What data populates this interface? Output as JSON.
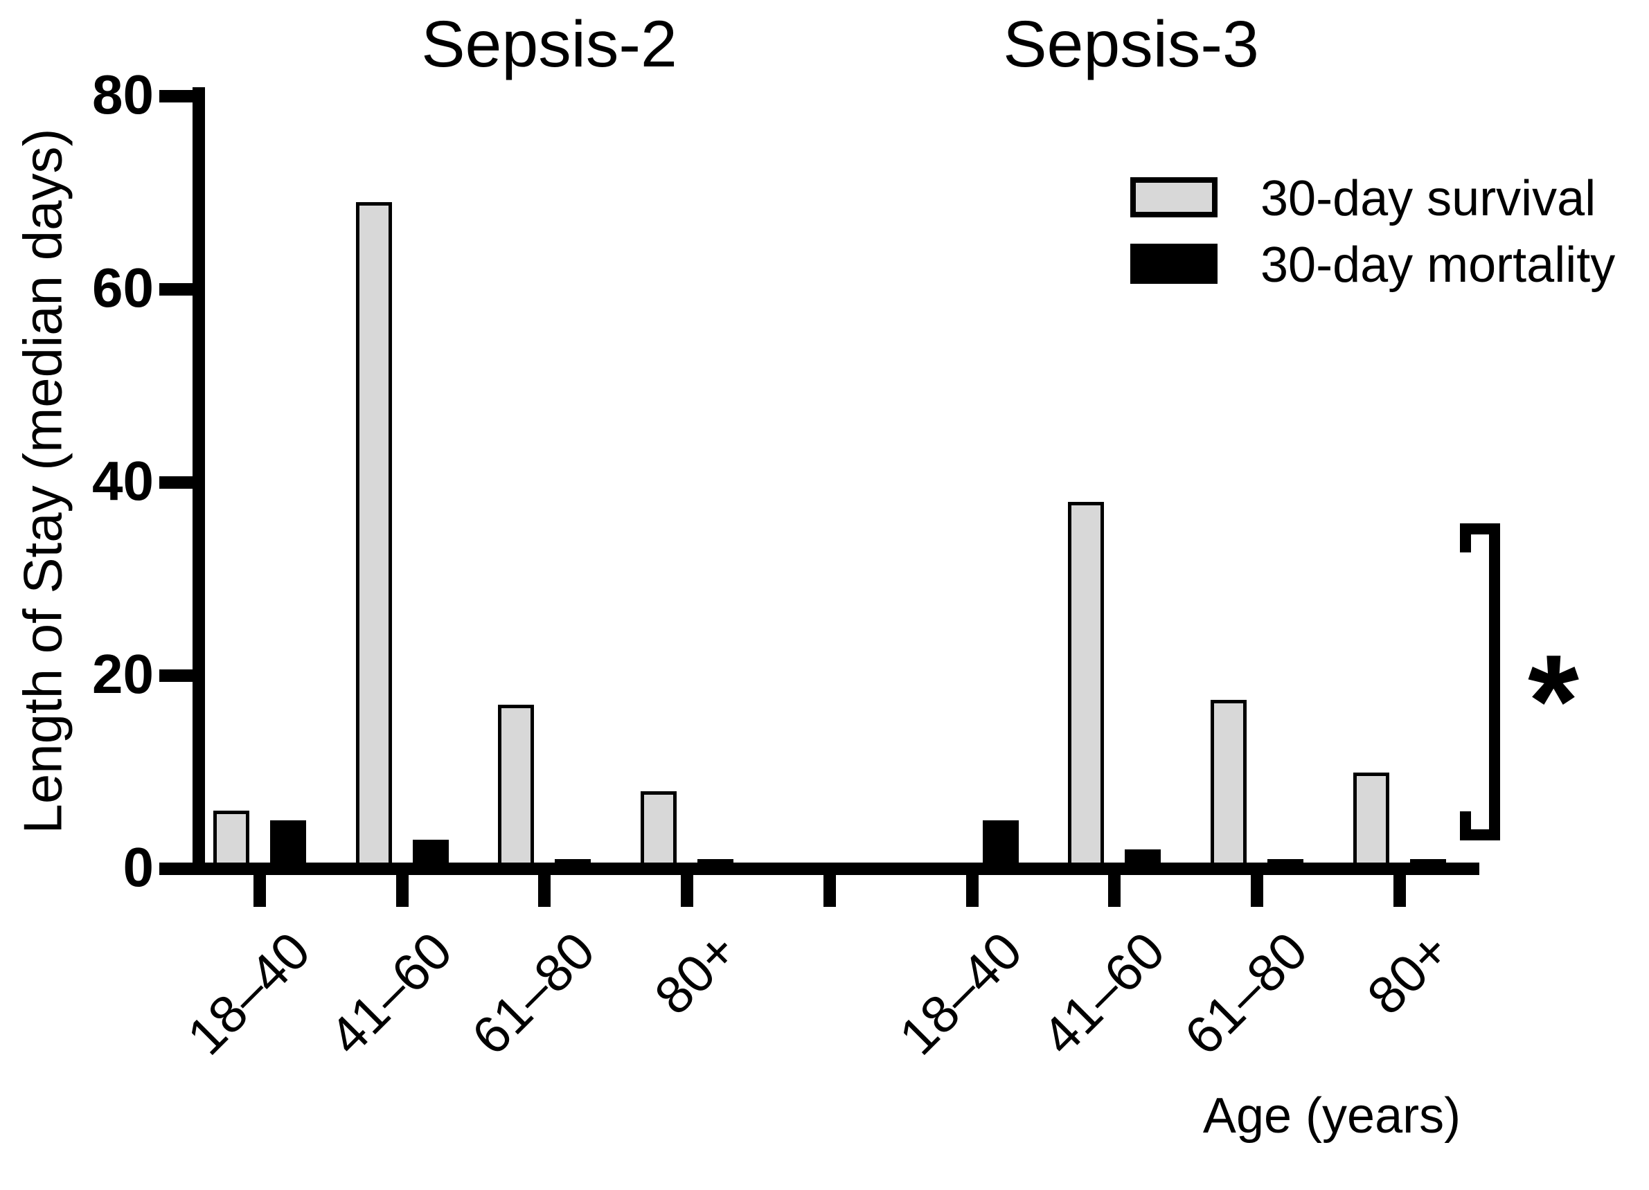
{
  "figure": {
    "panel_titles": [
      "Sepsis-2",
      "Sepsis-3"
    ]
  },
  "legend": {
    "items": [
      {
        "label": "30-day survival",
        "color": "#d8d8d8"
      },
      {
        "label": "30-day mortality",
        "color": "#000000"
      }
    ]
  },
  "chart_data": {
    "type": "bar",
    "title": "",
    "panels": [
      "Sepsis-2",
      "Sepsis-3"
    ],
    "categories": [
      "18–40",
      "41–60",
      "61–80",
      "80+",
      "18–40",
      "41–60",
      "61–80",
      "80+"
    ],
    "category_panels": [
      "Sepsis-2",
      "Sepsis-2",
      "Sepsis-2",
      "Sepsis-2",
      "Sepsis-3",
      "Sepsis-3",
      "Sepsis-3",
      "Sepsis-3"
    ],
    "series": [
      {
        "name": "30-day survival",
        "color": "#d8d8d8",
        "values": [
          6,
          69,
          17,
          8,
          0,
          38,
          17.5,
          10
        ]
      },
      {
        "name": "30-day mortality",
        "color": "#000000",
        "values": [
          5,
          3,
          1,
          1,
          5,
          2,
          1,
          1
        ]
      }
    ],
    "xlabel": "Age (years)",
    "ylabel": "Length of Stay (median days)",
    "ylim": [
      0,
      80
    ],
    "yticks": [
      0,
      20,
      40,
      60,
      80
    ],
    "grid": false,
    "legend_position": "top-right",
    "annotation": {
      "symbol": "*",
      "type": "significance-bracket",
      "applies_to": "Sepsis-3 group comparison"
    }
  }
}
